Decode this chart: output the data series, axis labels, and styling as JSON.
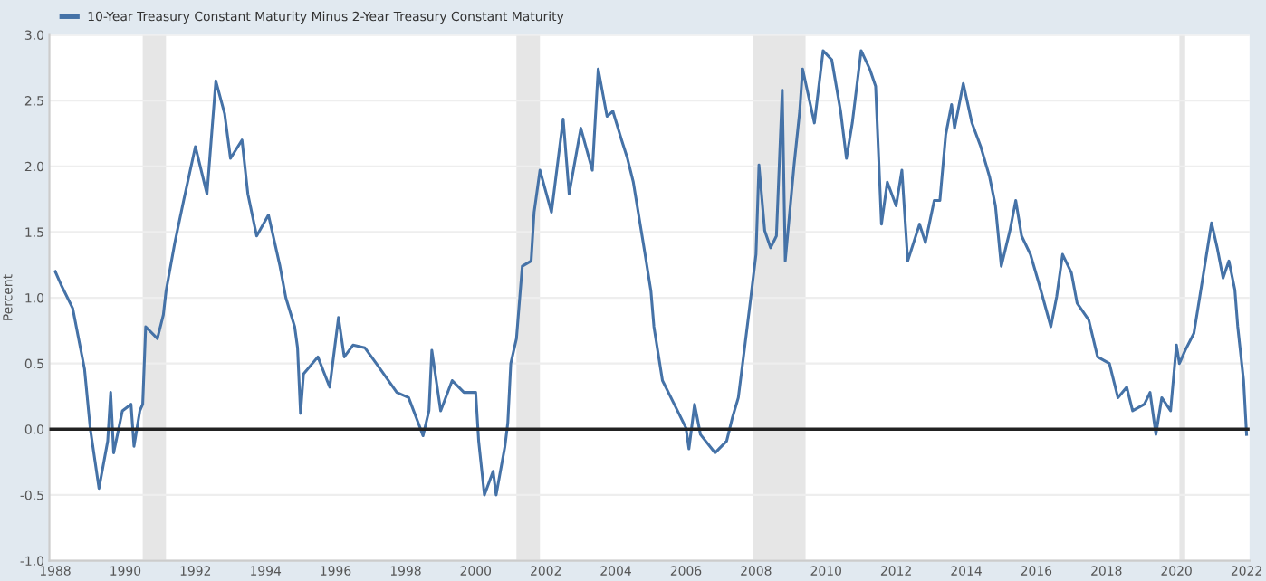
{
  "chart_data": {
    "type": "line",
    "ylabel": "Percent",
    "x": [
      "1988-01",
      "1988-03",
      "1988-07",
      "1988-11",
      "1989-01",
      "1989-04",
      "1989-07",
      "1989-08",
      "1989-09",
      "1989-12",
      "1990-03",
      "1990-04",
      "1990-06",
      "1990-07",
      "1990-08",
      "1990-12",
      "1991-02",
      "1991-03",
      "1991-06",
      "1991-09",
      "1992-01",
      "1992-05",
      "1992-08",
      "1992-11",
      "1993-01",
      "1993-05",
      "1993-07",
      "1993-10",
      "1994-02",
      "1994-06",
      "1994-08",
      "1994-11",
      "1994-12",
      "1995-01",
      "1995-02",
      "1995-07",
      "1995-11",
      "1996-02",
      "1996-04",
      "1996-07",
      "1996-11",
      "1997-03",
      "1997-10",
      "1998-02",
      "1998-06",
      "1998-07",
      "1998-09",
      "1998-10",
      "1999-01",
      "1999-05",
      "1999-09",
      "2000-01",
      "2000-02",
      "2000-04",
      "2000-07",
      "2000-08",
      "2000-11",
      "2000-12",
      "2001-01",
      "2001-03",
      "2001-05",
      "2001-08",
      "2001-09",
      "2001-11",
      "2002-03",
      "2002-07",
      "2002-09",
      "2003-01",
      "2003-05",
      "2003-07",
      "2003-10",
      "2003-12",
      "2004-03",
      "2004-05",
      "2004-07",
      "2004-11",
      "2005-01",
      "2005-02",
      "2005-05",
      "2005-09",
      "2006-01",
      "2006-02",
      "2006-04",
      "2006-06",
      "2006-11",
      "2007-03",
      "2007-05",
      "2007-07",
      "2007-09",
      "2007-11",
      "2008-01",
      "2008-02",
      "2008-04",
      "2008-06",
      "2008-08",
      "2008-10",
      "2008-11",
      "2009-02",
      "2009-04",
      "2009-05",
      "2009-09",
      "2009-12",
      "2010-03",
      "2010-06",
      "2010-08",
      "2010-10",
      "2011-01",
      "2011-04",
      "2011-06",
      "2011-07",
      "2011-08",
      "2011-10",
      "2012-01",
      "2012-03",
      "2012-05",
      "2012-09",
      "2012-11",
      "2013-02",
      "2013-04",
      "2013-06",
      "2013-08",
      "2013-09",
      "2013-12",
      "2014-03",
      "2014-06",
      "2014-09",
      "2014-11",
      "2015-01",
      "2015-04",
      "2015-06",
      "2015-08",
      "2015-11",
      "2016-02",
      "2016-06",
      "2016-08",
      "2016-10",
      "2017-01",
      "2017-03",
      "2017-07",
      "2017-10",
      "2018-02",
      "2018-05",
      "2018-08",
      "2018-10",
      "2019-02",
      "2019-04",
      "2019-06",
      "2019-08",
      "2019-11",
      "2020-01",
      "2020-02",
      "2020-04",
      "2020-07",
      "2020-09",
      "2021-01",
      "2021-03",
      "2021-05",
      "2021-07",
      "2021-09",
      "2021-10",
      "2021-12",
      "2022-01"
    ],
    "series": [
      {
        "name": "10-Year Treasury Constant Maturity Minus 2-Year Treasury Constant Maturity",
        "color": "#4572a7",
        "values": [
          1.2,
          1.1,
          0.92,
          0.46,
          0.0,
          -0.45,
          -0.09,
          0.28,
          -0.18,
          0.14,
          0.19,
          -0.13,
          0.14,
          0.19,
          0.78,
          0.69,
          0.87,
          1.05,
          1.42,
          1.74,
          2.15,
          1.79,
          2.65,
          2.4,
          2.06,
          2.2,
          1.79,
          1.47,
          1.63,
          1.24,
          1.0,
          0.78,
          0.62,
          0.12,
          0.42,
          0.55,
          0.32,
          0.85,
          0.55,
          0.64,
          0.62,
          0.5,
          0.28,
          0.24,
          0.01,
          -0.05,
          0.14,
          0.6,
          0.14,
          0.37,
          0.28,
          0.28,
          -0.09,
          -0.5,
          -0.32,
          -0.5,
          -0.13,
          0.05,
          0.5,
          0.69,
          1.24,
          1.28,
          1.65,
          1.97,
          1.65,
          2.36,
          1.79,
          2.29,
          1.97,
          2.74,
          2.38,
          2.42,
          2.2,
          2.06,
          1.88,
          1.33,
          1.05,
          0.78,
          0.37,
          0.19,
          0.01,
          -0.15,
          0.19,
          -0.04,
          -0.18,
          -0.09,
          0.09,
          0.24,
          0.6,
          0.96,
          1.33,
          2.01,
          1.51,
          1.38,
          1.47,
          2.58,
          1.28,
          2.01,
          2.42,
          2.74,
          2.33,
          2.88,
          2.81,
          2.42,
          2.06,
          2.33,
          2.88,
          2.74,
          2.61,
          2.1,
          1.56,
          1.88,
          1.7,
          1.97,
          1.28,
          1.56,
          1.42,
          1.74,
          1.74,
          2.24,
          2.47,
          2.29,
          2.63,
          2.33,
          2.15,
          1.92,
          1.7,
          1.24,
          1.51,
          1.74,
          1.47,
          1.33,
          1.1,
          0.78,
          1.01,
          1.33,
          1.19,
          0.96,
          0.83,
          0.55,
          0.5,
          0.24,
          0.32,
          0.14,
          0.19,
          0.28,
          -0.04,
          0.24,
          0.14,
          0.64,
          0.5,
          0.6,
          0.73,
          1.01,
          1.57,
          1.38,
          1.15,
          1.28,
          1.06,
          0.78,
          0.37,
          -0.04
        ]
      }
    ],
    "xlim": [
      "1987-11",
      "2022-02"
    ],
    "xticks": [
      {
        "value": "1988",
        "label": "1988"
      },
      {
        "value": "1990",
        "label": "1990"
      },
      {
        "value": "1992",
        "label": "1992"
      },
      {
        "value": "1994",
        "label": "1994"
      },
      {
        "value": "1996",
        "label": "1996"
      },
      {
        "value": "1998",
        "label": "1998"
      },
      {
        "value": "2000",
        "label": "2000"
      },
      {
        "value": "2002",
        "label": "2002"
      },
      {
        "value": "2004",
        "label": "2004"
      },
      {
        "value": "2006",
        "label": "2006"
      },
      {
        "value": "2008",
        "label": "2008"
      },
      {
        "value": "2010",
        "label": "2010"
      },
      {
        "value": "2012",
        "label": "2012"
      },
      {
        "value": "2014",
        "label": "2014"
      },
      {
        "value": "2016",
        "label": "2016"
      },
      {
        "value": "2018",
        "label": "2018"
      },
      {
        "value": "2020",
        "label": "2020"
      },
      {
        "value": "2022",
        "label": "2022"
      }
    ],
    "ylim": [
      -1.0,
      3.0
    ],
    "yticks": [
      {
        "value": -1.0,
        "label": "-1.0"
      },
      {
        "value": -0.5,
        "label": "-0.5"
      },
      {
        "value": 0.0,
        "label": "0.0"
      },
      {
        "value": 0.5,
        "label": "0.5"
      },
      {
        "value": 1.0,
        "label": "1.0"
      },
      {
        "value": 1.5,
        "label": "1.5"
      },
      {
        "value": 2.0,
        "label": "2.0"
      },
      {
        "value": 2.5,
        "label": "2.5"
      },
      {
        "value": 3.0,
        "label": "3.0"
      }
    ],
    "ref_lines": [
      {
        "axis": "y",
        "value": 0,
        "color": "#222222"
      }
    ],
    "bands": [
      {
        "axis": "x",
        "from": "1990-07",
        "to": "1991-03",
        "color": "#e6e6e6"
      },
      {
        "axis": "x",
        "from": "2001-03",
        "to": "2001-11",
        "color": "#e6e6e6"
      },
      {
        "axis": "x",
        "from": "2007-12",
        "to": "2009-06",
        "color": "#e6e6e6"
      },
      {
        "axis": "x",
        "from": "2020-02",
        "to": "2020-04",
        "color": "#e6e6e6"
      }
    ],
    "grid": "y",
    "legend": "top left",
    "line_style": "solid",
    "marker": "none"
  }
}
